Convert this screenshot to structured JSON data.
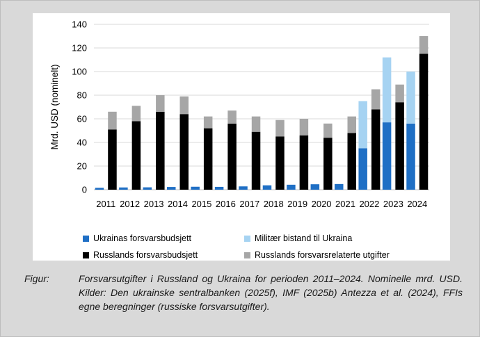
{
  "chart_data": {
    "type": "bar",
    "stacked": true,
    "ylabel": "Mrd. USD (nominelt)",
    "ylim": [
      0,
      140
    ],
    "yticks": [
      0,
      20,
      40,
      60,
      80,
      100,
      120,
      140
    ],
    "grid": true,
    "categories": [
      "2011",
      "2012",
      "2013",
      "2014",
      "2015",
      "2016",
      "2017",
      "2018",
      "2019",
      "2020",
      "2021",
      "2022",
      "2023",
      "2024"
    ],
    "groups": [
      {
        "name": "Ukraina",
        "series": [
          {
            "name": "Ukrainas forsvarsbudsjett",
            "color": "#1f6fc5",
            "values": [
              1.6,
              1.9,
              2.0,
              2.3,
              2.5,
              2.4,
              2.8,
              3.7,
              4.2,
              4.6,
              4.8,
              35,
              57,
              56
            ]
          },
          {
            "name": "Militær bistand til Ukraina",
            "color": "#a6d3f2",
            "values": [
              0,
              0,
              0,
              0,
              0,
              0,
              0,
              0,
              0,
              0,
              0,
              40,
              55,
              44
            ]
          }
        ]
      },
      {
        "name": "Russland",
        "series": [
          {
            "name": "Russlands forsvarsbudsjett",
            "color": "#000000",
            "values": [
              51,
              58,
              66,
              64,
              52,
              56,
              49,
              45,
              46,
              44,
              48,
              68,
              74,
              115
            ]
          },
          {
            "name": "Russlands forsvarsrelaterte utgifter",
            "color": "#a6a6a6",
            "values": [
              15,
              13,
              14,
              15,
              10,
              11,
              13,
              14,
              14,
              12,
              14,
              17,
              15,
              15
            ]
          }
        ]
      }
    ]
  },
  "legend": {
    "items": [
      {
        "label": "Ukrainas forsvarsbudsjett",
        "color": "#1f6fc5"
      },
      {
        "label": "Militær bistand til Ukraina",
        "color": "#a6d3f2"
      },
      {
        "label": "Russlands forsvarsbudsjett",
        "color": "#000000"
      },
      {
        "label": "Russlands forsvarsrelaterte utgifter",
        "color": "#a6a6a6"
      }
    ]
  },
  "caption": {
    "label": "Figur:",
    "text": "Forsvarsutgifter i Russland og Ukraina for perioden 2011–2024. Nominelle mrd. USD. Kilder: Den ukrainske sentralbanken (2025f), IMF (2025b) Antezza et al. (2024), FFIs egne beregninger (russiske forsvarsutgifter)."
  }
}
